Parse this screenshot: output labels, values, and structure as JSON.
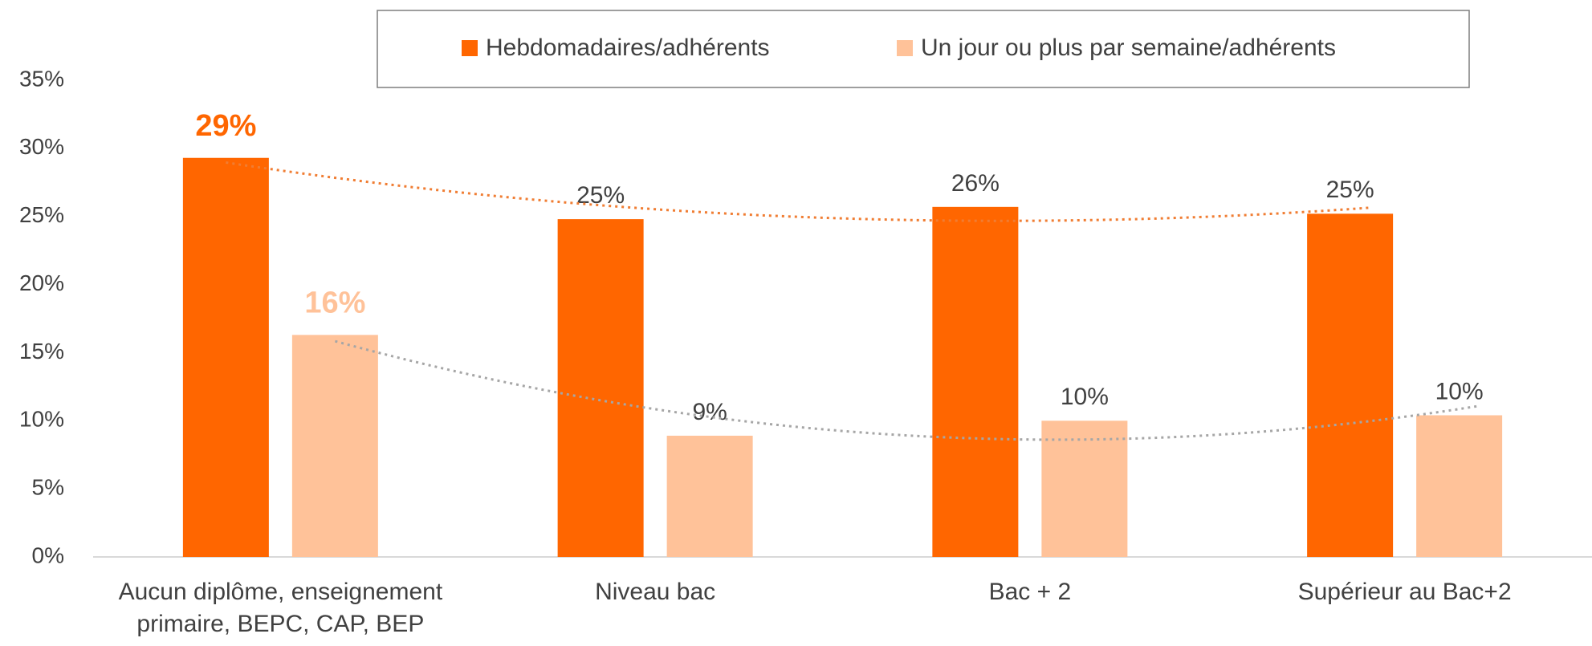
{
  "chart_data": {
    "type": "bar",
    "categories": [
      "Aucun diplôme, enseignement primaire, BEPC, CAP, BEP",
      "Niveau bac",
      "Bac + 2",
      "Supérieur au Bac+2"
    ],
    "series": [
      {
        "name": "Hebdomadaires/adhérents",
        "color": "#ff6600",
        "trend_color": "#f07d33",
        "values": [
          29.3,
          24.8,
          25.7,
          25.2
        ],
        "value_labels": [
          "29%",
          "25%",
          "26%",
          "25%"
        ]
      },
      {
        "name": "Un jour ou plus par semaine/adhérents",
        "color": "#ffc299",
        "trend_color": "#a6a6a6",
        "values": [
          16.3,
          8.9,
          10.0,
          10.4
        ],
        "value_labels": [
          "16%",
          "9%",
          "10%",
          "10%"
        ]
      }
    ],
    "ylim": [
      0,
      35
    ],
    "yticks": [
      {
        "value": 0,
        "label": "0%"
      },
      {
        "value": 5,
        "label": "5%"
      },
      {
        "value": 10,
        "label": "10%"
      },
      {
        "value": 15,
        "label": "15%"
      },
      {
        "value": 20,
        "label": "20%"
      },
      {
        "value": 25,
        "label": "25%"
      },
      {
        "value": 30,
        "label": "30%"
      },
      {
        "value": 35,
        "label": "35%"
      }
    ],
    "grid": false,
    "trendline": "polynomial",
    "highlight_index": 0,
    "legend": "top"
  }
}
